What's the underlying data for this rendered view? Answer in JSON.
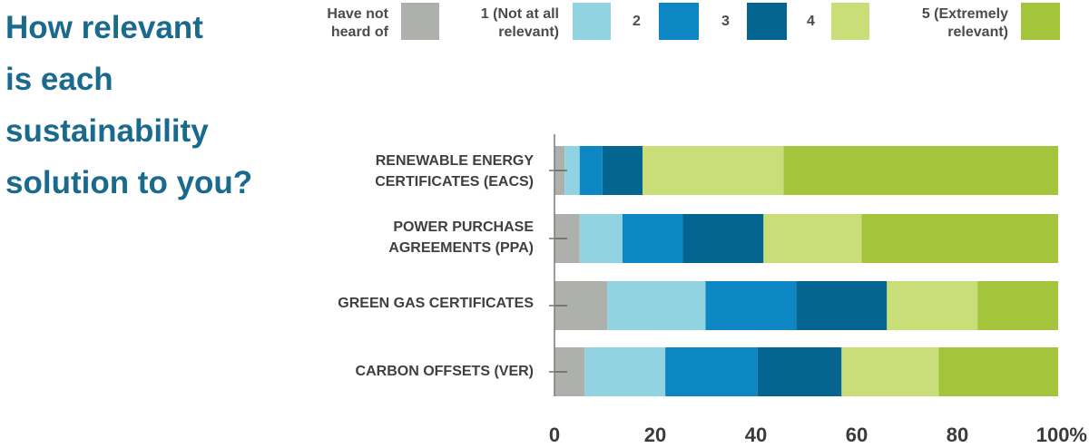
{
  "title_lines": [
    "How relevant",
    "is each",
    "sustainability",
    "solution to you?"
  ],
  "colors": {
    "title": "#1a6a8e",
    "series": [
      "#adb0ab",
      "#92d3e1",
      "#0d87c3",
      "#036590",
      "#c9dd78",
      "#a3c43b"
    ]
  },
  "chart_data": {
    "type": "bar",
    "orientation": "horizontal",
    "stacked": true,
    "categories": [
      "RENEWABLE ENERGY\nCERTIFICATES (EACS)",
      "POWER PURCHASE\nAGREEMENTS (PPA)",
      "GREEN GAS CERTIFICATES",
      "CARBON OFFSETS (VER)"
    ],
    "series": [
      {
        "name": "Have not\nheard of",
        "values": [
          2,
          5,
          10.5,
          6
        ]
      },
      {
        "name": "1 (Not at all\nrelevant)",
        "values": [
          3,
          8.5,
          19.5,
          16
        ]
      },
      {
        "name": "2",
        "values": [
          4.5,
          12,
          18,
          18.3
        ]
      },
      {
        "name": "3",
        "values": [
          8,
          16,
          18,
          16.7
        ]
      },
      {
        "name": "4",
        "values": [
          28,
          19.5,
          18,
          19.3
        ]
      },
      {
        "name": "5 (Extremely\nrelevant)",
        "values": [
          54.5,
          39,
          16,
          23.7
        ]
      }
    ],
    "xlim": [
      0,
      100
    ],
    "ticks": [
      "0",
      "20",
      "40",
      "60",
      "80",
      "100%"
    ],
    "legend_position": "top",
    "grid": false
  }
}
